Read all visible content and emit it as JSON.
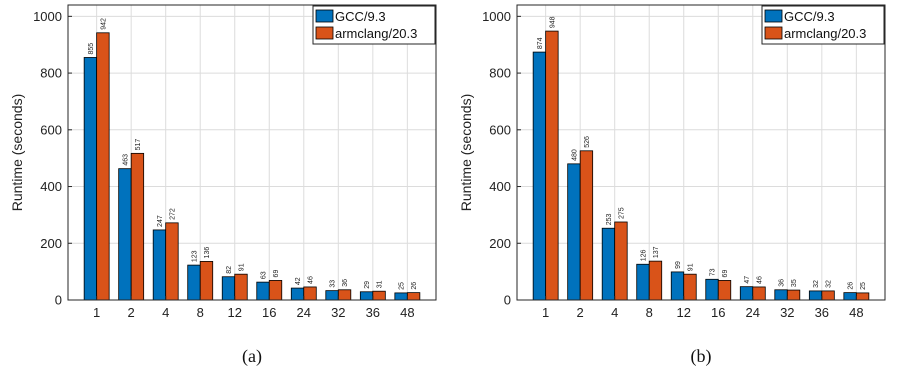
{
  "chart_data": [
    {
      "type": "bar",
      "caption": "(a)",
      "ylabel": "Runtime (seconds)",
      "xlabel": "",
      "categories": [
        "1",
        "2",
        "4",
        "8",
        "12",
        "16",
        "24",
        "32",
        "36",
        "48"
      ],
      "ylim": [
        0,
        1040
      ],
      "yticks": [
        0,
        200,
        400,
        600,
        800,
        1000
      ],
      "grid": true,
      "legend": "top-right",
      "series": [
        {
          "name": "GCC/9.3",
          "color": "#0072BD",
          "values": [
            855,
            463,
            247,
            123,
            82,
            63,
            42,
            33,
            29,
            25
          ]
        },
        {
          "name": "armclang/20.3",
          "color": "#D95319",
          "values": [
            942,
            517,
            272,
            136,
            91,
            69,
            46,
            36,
            31,
            26
          ]
        }
      ]
    },
    {
      "type": "bar",
      "caption": "(b)",
      "ylabel": "Runtime (seconds)",
      "xlabel": "",
      "categories": [
        "1",
        "2",
        "4",
        "8",
        "12",
        "16",
        "24",
        "32",
        "36",
        "48"
      ],
      "ylim": [
        0,
        1040
      ],
      "yticks": [
        0,
        200,
        400,
        600,
        800,
        1000
      ],
      "grid": true,
      "legend": "top-right",
      "series": [
        {
          "name": "GCC/9.3",
          "color": "#0072BD",
          "values": [
            874,
            480,
            253,
            126,
            99,
            73,
            47,
            36,
            32,
            26
          ]
        },
        {
          "name": "armclang/20.3",
          "color": "#D95319",
          "values": [
            948,
            526,
            275,
            137,
            91,
            69,
            46,
            35,
            32,
            25
          ]
        }
      ]
    }
  ]
}
